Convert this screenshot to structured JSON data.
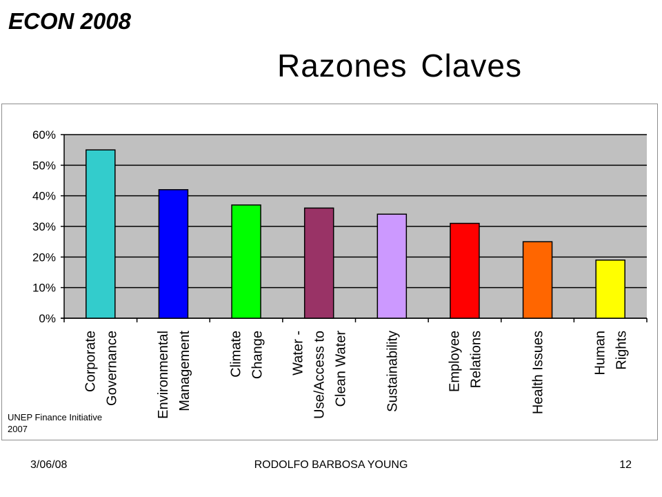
{
  "slide": {
    "header_title": "ECON 2008",
    "title": "Razones Claves",
    "source_line1": "UNEP Finance Initiative",
    "source_line2": "2007",
    "footer_date": "3/06/08",
    "footer_author": "RODOLFO BARBOSA YOUNG",
    "footer_page": "12"
  },
  "chart_data": {
    "type": "bar",
    "categories": [
      [
        "Corporate",
        "Governance"
      ],
      [
        "Environmental",
        "Management"
      ],
      [
        "Climate",
        "Change"
      ],
      [
        "Water -",
        "Use/Access to",
        "Clean Water"
      ],
      [
        "Sustainability"
      ],
      [
        "Employee",
        "Relations"
      ],
      [
        "Health Issues"
      ],
      [
        "Human",
        "Rights"
      ]
    ],
    "values": [
      55,
      42,
      37,
      36,
      34,
      31,
      25,
      19
    ],
    "colors": [
      "#33cccc",
      "#0000ff",
      "#00ff00",
      "#993366",
      "#cc99ff",
      "#ff0000",
      "#ff6600",
      "#ffff00"
    ],
    "ylim": [
      0,
      60
    ],
    "yticks": [
      0,
      10,
      20,
      30,
      40,
      50,
      60
    ],
    "ytick_format": "percent",
    "plot_background": "#c0c0c0",
    "grid": true,
    "legend": false,
    "title": "",
    "xlabel": "",
    "ylabel": ""
  }
}
